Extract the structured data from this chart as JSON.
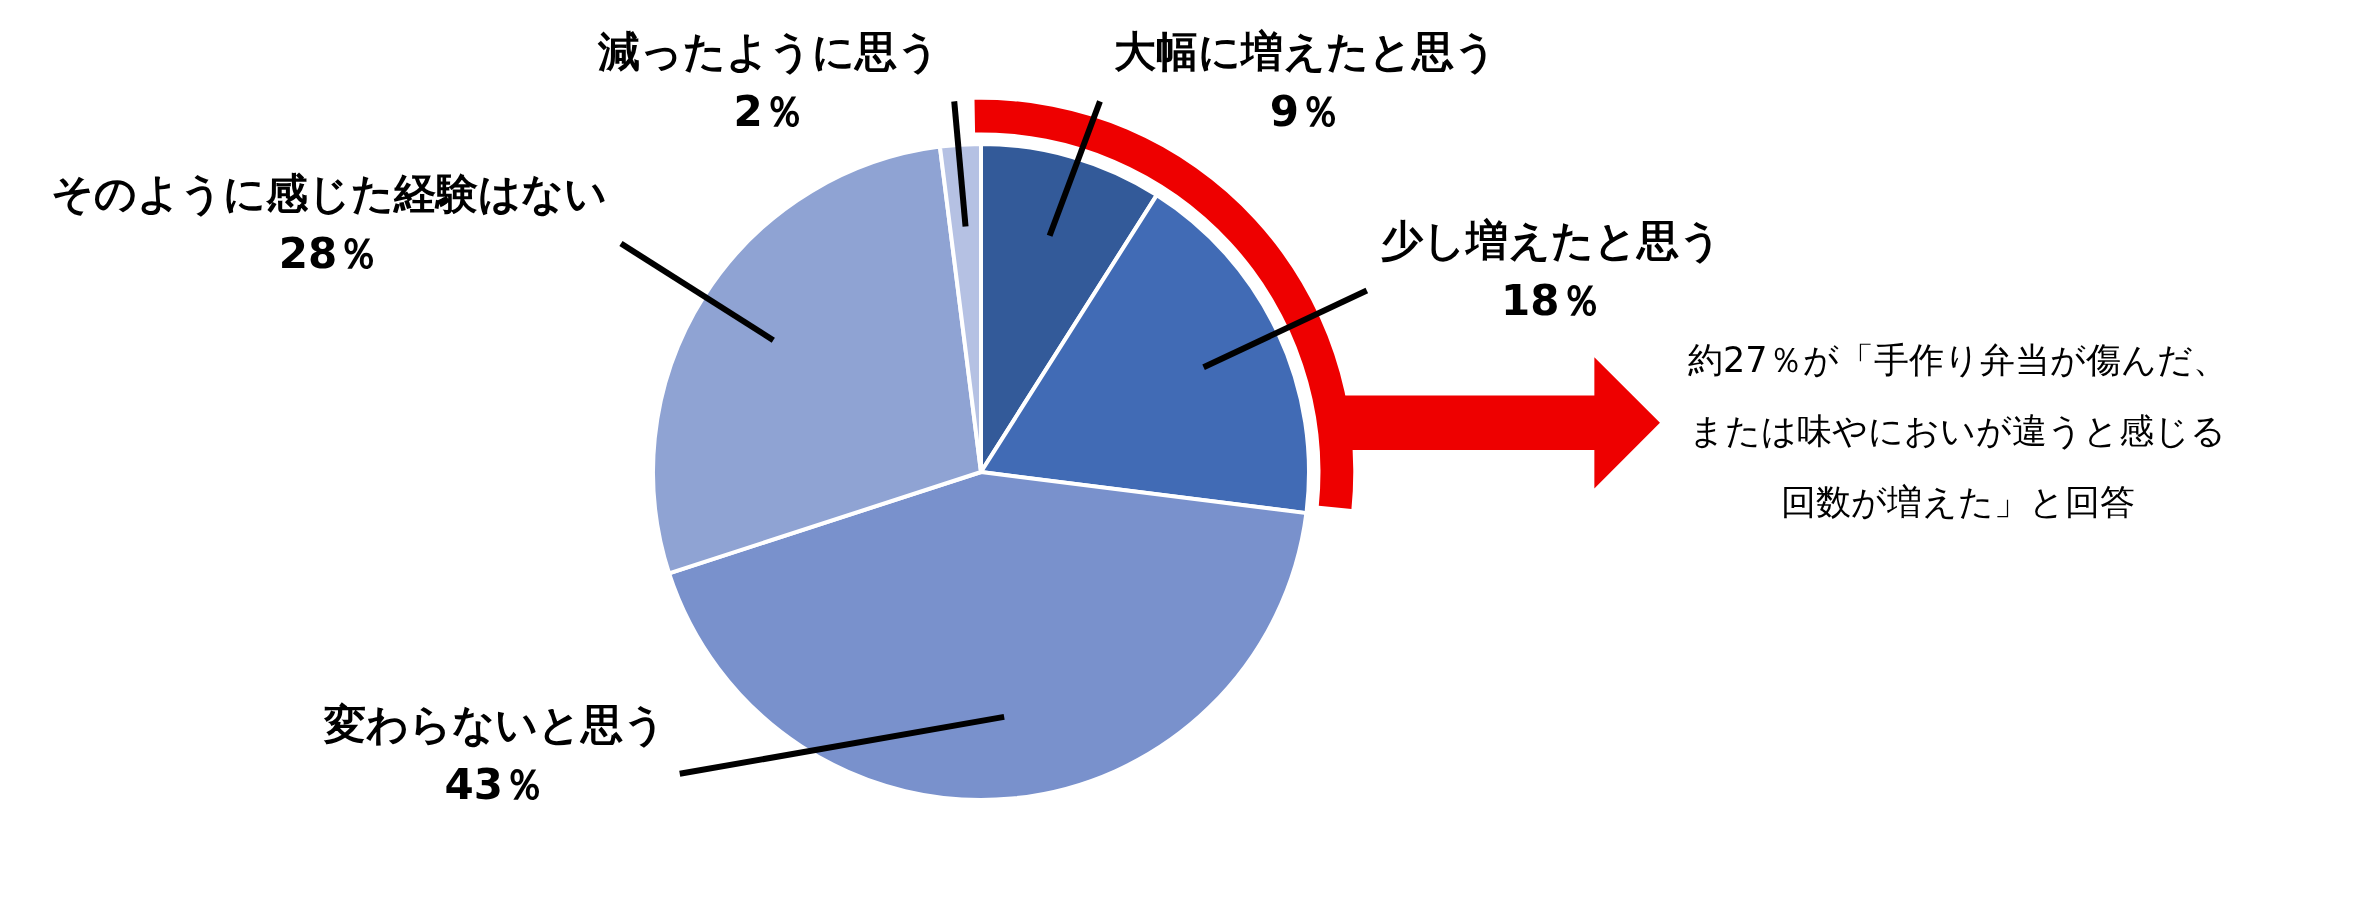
{
  "chart_data": {
    "type": "pie",
    "categories": [
      "大幅に増えたと思う",
      "少し増えたと思う",
      "変わらないと思う",
      "そのように感じた経験はない",
      "減ったように思う"
    ],
    "values": [
      9,
      18,
      43,
      28,
      2
    ],
    "colors": [
      "#335a99",
      "#416bb5",
      "#7991cc",
      "#8fa3d3",
      "#b5c1e3"
    ],
    "value_labels": [
      "9％",
      "18％",
      "43％",
      "28％",
      "2％"
    ],
    "annotations": [
      "約27％が「手作り弁当が傷んだ、または味やにおいが違うと感じる回数が増えた」と回答"
    ]
  }
}
